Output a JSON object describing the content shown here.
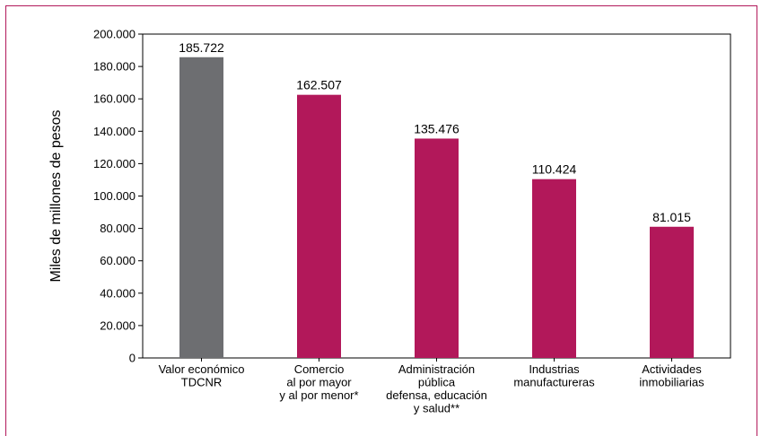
{
  "chart_data": {
    "type": "bar",
    "title": "",
    "ylabel": "Miles de millones de pesos",
    "xlabel": "",
    "ylim": [
      0,
      200000
    ],
    "yticks": [
      0,
      20000,
      40000,
      60000,
      80000,
      100000,
      120000,
      140000,
      160000,
      180000,
      200000
    ],
    "ytick_labels": [
      "0",
      "20.000",
      "40.000",
      "60.000",
      "80.000",
      "100.000",
      "120.000",
      "140.000",
      "160.000",
      "180.000",
      "200.000"
    ],
    "categories": [
      [
        "Valor económico",
        "TDCNR"
      ],
      [
        "Comercio",
        "al por mayor",
        "y al por menor*"
      ],
      [
        "Administración",
        "pública",
        "defensa, educación",
        "y salud**"
      ],
      [
        "Industrias",
        "manufactureras"
      ],
      [
        "Actividades",
        "inmobiliarias"
      ]
    ],
    "values": [
      185722,
      162507,
      135476,
      110424,
      81015
    ],
    "value_labels": [
      "185.722",
      "162.507",
      "135.476",
      "110.424",
      "81.015"
    ],
    "bar_colors": [
      "#6d6e71",
      "#b2185a",
      "#b2185a",
      "#b2185a",
      "#b2185a"
    ],
    "grid": false,
    "legend": "none"
  }
}
